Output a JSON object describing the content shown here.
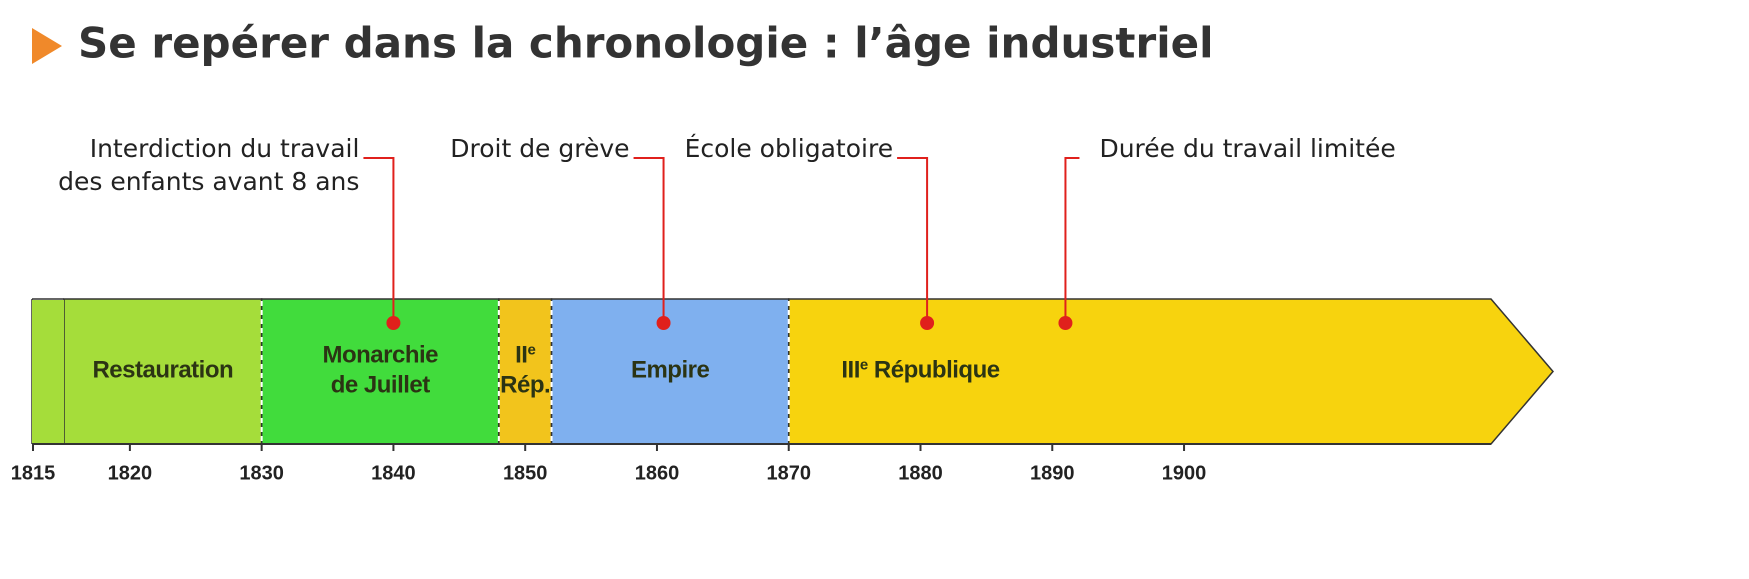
{
  "chart_data": {
    "type": "timeline",
    "title": "Se repérer dans la chronologie : l’âge industriel",
    "xlim": [
      1815,
      1928
    ],
    "xticks": [
      1815,
      1820,
      1830,
      1840,
      1850,
      1860,
      1870,
      1880,
      1890,
      1900
    ],
    "periods": [
      {
        "start": 1815,
        "color": "#a5dd3a",
        "label": [
          [
            {
              "text": "Restauration"
            }
          ]
        ]
      },
      {
        "start": 1830,
        "color": "#41dc3c",
        "label": [
          [
            {
              "text": "Monarchie"
            }
          ],
          [
            {
              "text": "de Juillet"
            }
          ]
        ]
      },
      {
        "start": 1848,
        "color": "#f2c41c",
        "label": [
          [
            {
              "text": "II"
            },
            {
              "sup": "e"
            }
          ],
          [
            {
              "text": "Rép."
            }
          ]
        ]
      },
      {
        "start": 1852,
        "color": "#7fb0ef",
        "label": [
          [
            {
              "text": "Empire"
            }
          ]
        ]
      },
      {
        "start": 1870,
        "color": "#f7d30e",
        "label": [
          [
            {
              "text": "III"
            },
            {
              "sup": "e"
            },
            {
              "text": " République"
            }
          ]
        ]
      }
    ],
    "events": [
      {
        "x": 1840,
        "side": "left",
        "label": [
          "Interdiction du travail",
          "des enfants avant 8 ans"
        ]
      },
      {
        "x": 1860.5,
        "side": "left",
        "label": [
          "Droit de grève"
        ]
      },
      {
        "x": 1880.5,
        "side": "left",
        "label": [
          "École obligatoire"
        ]
      },
      {
        "x": 1891,
        "side": "right",
        "label": [
          "Durée du travail limitée"
        ]
      }
    ],
    "event_color": "#e0201c"
  }
}
